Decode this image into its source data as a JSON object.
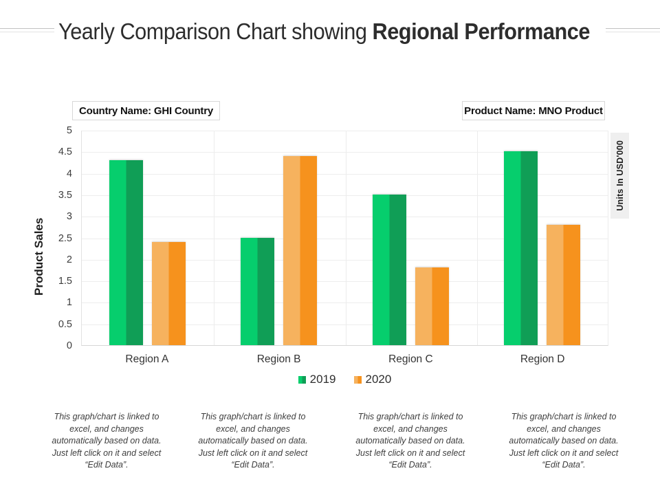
{
  "page": {
    "title_regular": "Yearly Comparison Chart showing ",
    "title_bold": "Regional Performance"
  },
  "info_boxes": {
    "country": "Country Name: GHI Country",
    "product": "Product Name: MNO Product"
  },
  "chart_data": {
    "type": "bar",
    "title": "Yearly Comparison Chart showing Regional Performance",
    "categories": [
      "Region A",
      "Region B",
      "Region C",
      "Region D"
    ],
    "series": [
      {
        "name": "2019",
        "values": [
          4.3,
          2.5,
          3.5,
          4.5
        ],
        "color_light": "#06ce6d",
        "color_dark": "#109e56"
      },
      {
        "name": "2020",
        "values": [
          2.4,
          4.4,
          1.8,
          2.8
        ],
        "color_light": "#f6b25e",
        "color_dark": "#f6921d"
      }
    ],
    "ylabel": "Product Sales",
    "y2label": "Units In USD'000",
    "ylim": [
      0,
      5
    ],
    "ytick_step": 0.5,
    "yticks": [
      "0",
      "0.5",
      "1",
      "1.5",
      "2",
      "2.5",
      "3",
      "3.5",
      "4",
      "4.5",
      "5"
    ],
    "grid": true,
    "legend_position": "bottom"
  },
  "footer": {
    "note": "This graph/chart is linked to excel, and changes automatically based on data. Just left click on it and select “Edit Data”.",
    "repeat": 4
  }
}
